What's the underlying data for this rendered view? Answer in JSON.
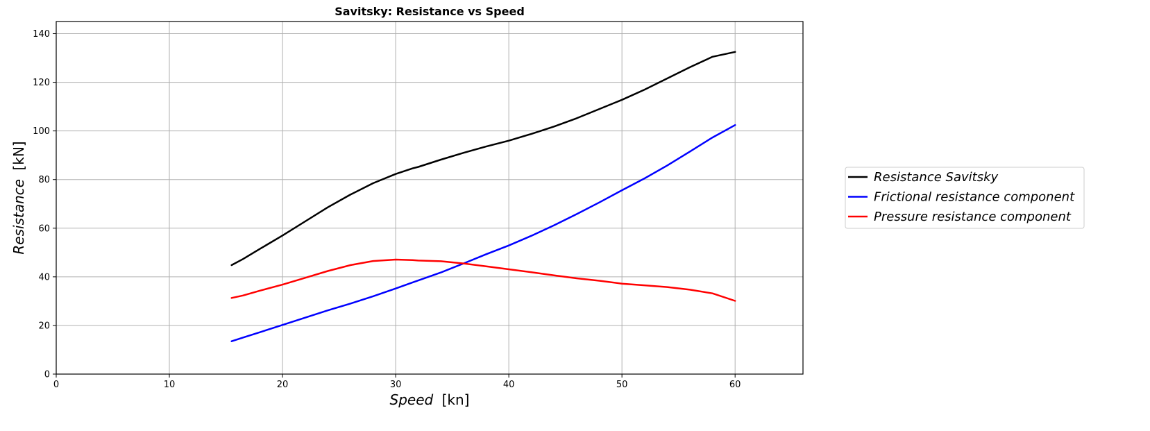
{
  "chart_data": {
    "type": "line",
    "title": "Savitsky: Resistance vs Speed",
    "xlabel_italic": "Speed",
    "xlabel_unit": "[kn]",
    "ylabel_italic": "Resistance",
    "ylabel_unit": "[kN]",
    "xlim": [
      0,
      66
    ],
    "ylim": [
      0,
      145
    ],
    "xticks": [
      "0",
      "10",
      "20",
      "30",
      "40",
      "50",
      "60"
    ],
    "yticks": [
      "0",
      "20",
      "40",
      "60",
      "80",
      "100",
      "120",
      "140"
    ],
    "grid": true,
    "legend_position": "right-outside",
    "x": [
      15.5,
      16.5,
      18,
      20,
      22,
      24,
      26,
      28,
      30,
      31.5,
      32,
      34,
      36,
      38,
      40,
      42,
      44,
      46,
      48,
      50,
      52,
      54,
      56,
      58,
      60
    ],
    "series": [
      {
        "name": "Resistance Savitsky",
        "color": "#000000",
        "values": [
          44.8,
          47.3,
          51.5,
          57.0,
          62.8,
          68.6,
          73.8,
          78.5,
          82.3,
          84.6,
          85.2,
          88.2,
          91.0,
          93.6,
          96.0,
          98.8,
          101.8,
          105.2,
          109.0,
          112.8,
          117.0,
          121.6,
          126.2,
          130.5,
          132.5
        ]
      },
      {
        "name": "Frictional resistance component",
        "color": "#0000ff",
        "values": [
          13.5,
          15.0,
          17.2,
          20.2,
          23.2,
          26.2,
          29.0,
          32.0,
          35.2,
          37.7,
          38.5,
          41.8,
          45.5,
          49.3,
          52.9,
          56.9,
          61.2,
          65.8,
          70.6,
          75.6,
          80.5,
          85.8,
          91.5,
          97.3,
          102.4
        ]
      },
      {
        "name": "Pressure resistance component",
        "color": "#ff0000",
        "values": [
          31.3,
          32.3,
          34.3,
          36.8,
          39.6,
          42.4,
          44.8,
          46.5,
          47.1,
          46.9,
          46.7,
          46.4,
          45.5,
          44.3,
          43.1,
          41.9,
          40.6,
          39.4,
          38.4,
          37.2,
          36.5,
          35.8,
          34.7,
          33.2,
          30.1
        ]
      }
    ]
  }
}
